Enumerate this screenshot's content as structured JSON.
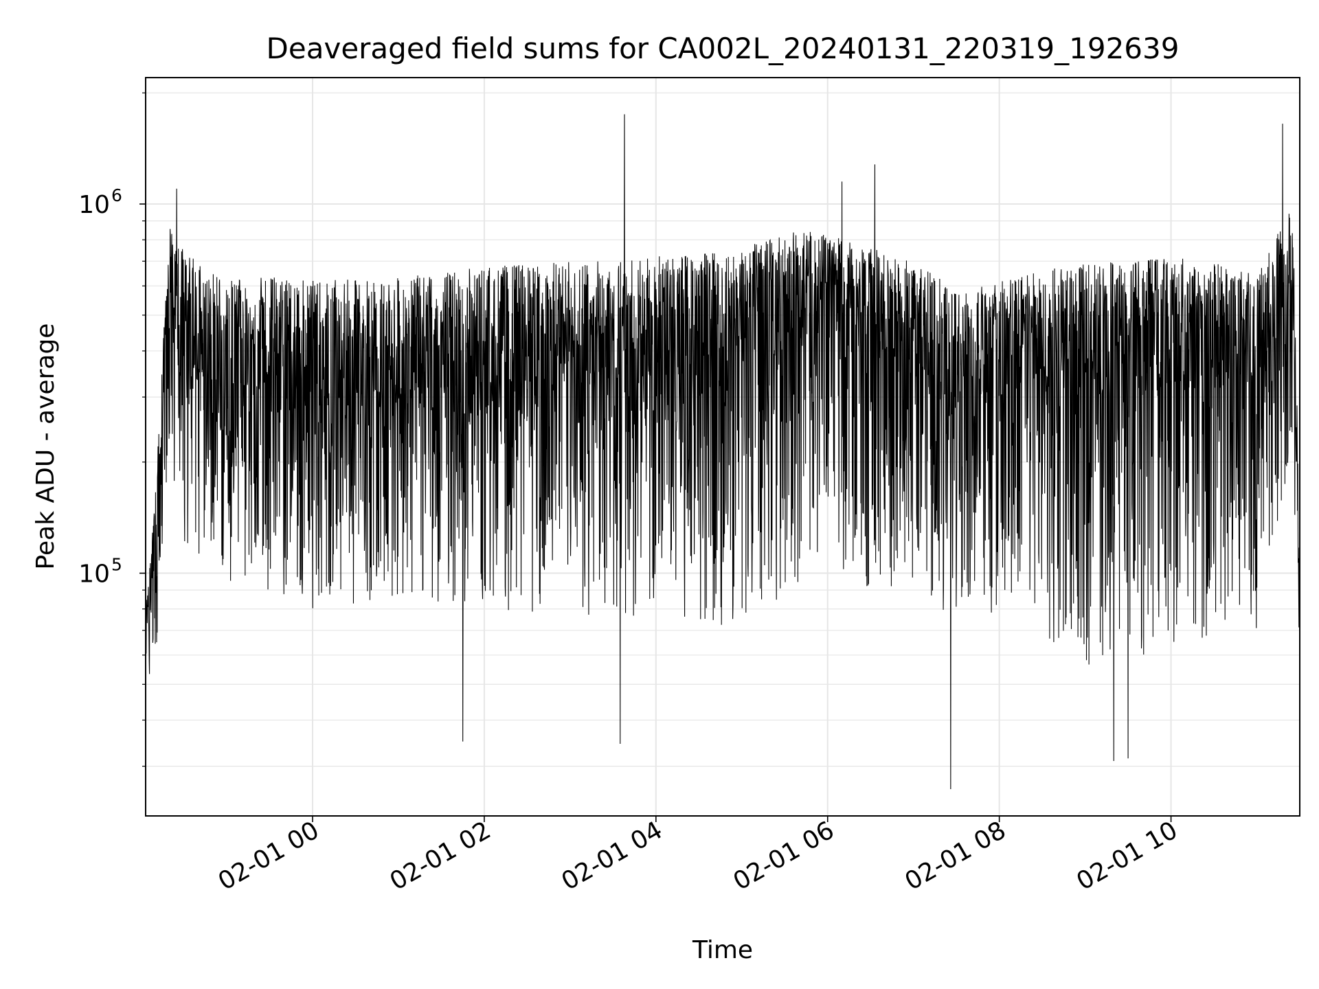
{
  "chart_data": {
    "type": "line",
    "title": "Deaveraged field sums for CA002L_20240131_220319_192639",
    "xlabel": "Time",
    "ylabel": "Peak ADU - average",
    "yscale": "log",
    "grid": true,
    "legend": "none",
    "line_color": "#000000",
    "grid_color": "#e6e6e6",
    "xlim": [
      "2024-01-31T22:03:19",
      "2024-02-01T11:30:00"
    ],
    "ylim": [
      22000,
      2200000
    ],
    "x_ticks": [
      {
        "value": "2024-02-01T00:00:00",
        "label": "02-01 00"
      },
      {
        "value": "2024-02-01T02:00:00",
        "label": "02-01 02"
      },
      {
        "value": "2024-02-01T04:00:00",
        "label": "02-01 04"
      },
      {
        "value": "2024-02-01T06:00:00",
        "label": "02-01 06"
      },
      {
        "value": "2024-02-01T08:00:00",
        "label": "02-01 08"
      },
      {
        "value": "2024-02-01T10:00:00",
        "label": "02-01 10"
      }
    ],
    "y_ticks": [
      {
        "value": 100000,
        "base": "10",
        "exp": "5"
      },
      {
        "value": 1000000,
        "base": "10",
        "exp": "6"
      }
    ],
    "series": [
      {
        "x_start": "2024-01-31T22:03:19",
        "x_end": "2024-02-01T11:30:00",
        "envelope": {
          "x": [
            "2024-01-31T22:03:19",
            "2024-01-31T22:10:00",
            "2024-01-31T22:20:00",
            "2024-01-31T22:30:00",
            "2024-01-31T23:00:00",
            "2024-01-31T23:30:00",
            "2024-02-01T00:00:00",
            "2024-02-01T01:00:00",
            "2024-02-01T02:00:00",
            "2024-02-01T03:00:00",
            "2024-02-01T04:00:00",
            "2024-02-01T05:00:00",
            "2024-02-01T05:40:00",
            "2024-02-01T06:00:00",
            "2024-02-01T06:30:00",
            "2024-02-01T07:00:00",
            "2024-02-01T07:30:00",
            "2024-02-01T08:00:00",
            "2024-02-01T09:00:00",
            "2024-02-01T10:00:00",
            "2024-02-01T10:30:00",
            "2024-02-01T11:00:00",
            "2024-02-01T11:15:00",
            "2024-02-01T11:25:00",
            "2024-02-01T11:30:00"
          ],
          "high": [
            80000,
            160000,
            900000,
            750000,
            620000,
            640000,
            620000,
            630000,
            680000,
            700000,
            720000,
            760000,
            850000,
            830000,
            760000,
            700000,
            590000,
            620000,
            700000,
            720000,
            700000,
            650000,
            850000,
            1000000,
            130000
          ],
          "low": [
            50000,
            55000,
            200000,
            120000,
            95000,
            90000,
            80000,
            85000,
            80000,
            75000,
            75000,
            70000,
            95000,
            100000,
            90000,
            90000,
            70000,
            65000,
            55000,
            60000,
            60000,
            70000,
            140000,
            200000,
            60000
          ],
          "median": [
            70000,
            100000,
            500000,
            380000,
            330000,
            330000,
            310000,
            320000,
            330000,
            350000,
            380000,
            430000,
            500000,
            500000,
            440000,
            380000,
            310000,
            330000,
            370000,
            380000,
            360000,
            350000,
            480000,
            600000,
            80000
          ]
        },
        "peaks": [
          {
            "x": "2024-02-01T03:38:00",
            "y": 1750000
          },
          {
            "x": "2024-02-01T11:18:00",
            "y": 1650000
          },
          {
            "x": "2024-02-01T06:33:00",
            "y": 1280000
          },
          {
            "x": "2024-01-31T22:25:00",
            "y": 1100000
          },
          {
            "x": "2024-02-01T06:10:00",
            "y": 1150000
          },
          {
            "x": "2024-02-01T07:26:00",
            "y": 26000
          },
          {
            "x": "2024-02-01T09:20:00",
            "y": 31000
          },
          {
            "x": "2024-02-01T09:30:00",
            "y": 31500
          },
          {
            "x": "2024-02-01T01:45:00",
            "y": 35000
          },
          {
            "x": "2024-02-01T03:35:00",
            "y": 34500
          }
        ]
      }
    ]
  }
}
